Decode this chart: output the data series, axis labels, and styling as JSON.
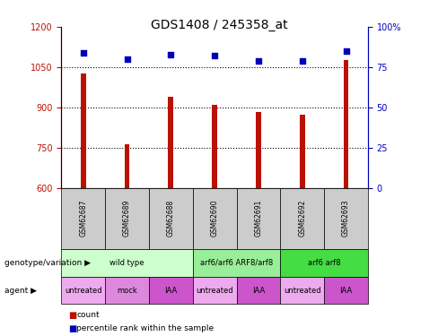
{
  "title": "GDS1408 / 245358_at",
  "samples": [
    "GSM62687",
    "GSM62689",
    "GSM62688",
    "GSM62690",
    "GSM62691",
    "GSM62692",
    "GSM62693"
  ],
  "bar_values": [
    1025,
    762,
    940,
    910,
    882,
    872,
    1075
  ],
  "percentile_values": [
    84,
    80,
    83,
    82,
    79,
    79,
    85
  ],
  "ylim_left": [
    600,
    1200
  ],
  "ylim_right": [
    0,
    100
  ],
  "yticks_left": [
    600,
    750,
    900,
    1050,
    1200
  ],
  "yticks_right": [
    0,
    25,
    50,
    75,
    100
  ],
  "bar_color": "#bb1100",
  "scatter_color": "#0000bb",
  "background_color": "#ffffff",
  "genotype_label": "genotype/variation",
  "agent_label": "agent",
  "genotype_groups": [
    {
      "label": "wild type",
      "start": 0,
      "end": 3,
      "color": "#ccffcc"
    },
    {
      "label": "arf6/arf6 ARF8/arf8",
      "start": 3,
      "end": 5,
      "color": "#99ee99"
    },
    {
      "label": "arf6 arf8",
      "start": 5,
      "end": 7,
      "color": "#44dd44"
    }
  ],
  "agent_groups": [
    {
      "label": "untreated",
      "start": 0,
      "end": 1,
      "color": "#eeaaee"
    },
    {
      "label": "mock",
      "start": 1,
      "end": 2,
      "color": "#dd88dd"
    },
    {
      "label": "IAA",
      "start": 2,
      "end": 3,
      "color": "#cc55cc"
    },
    {
      "label": "untreated",
      "start": 3,
      "end": 4,
      "color": "#eeaaee"
    },
    {
      "label": "IAA",
      "start": 4,
      "end": 5,
      "color": "#cc55cc"
    },
    {
      "label": "untreated",
      "start": 5,
      "end": 6,
      "color": "#eeaaee"
    },
    {
      "label": "IAA",
      "start": 6,
      "end": 7,
      "color": "#cc55cc"
    }
  ],
  "legend_count_color": "#bb1100",
  "legend_percentile_color": "#0000bb",
  "title_fontsize": 10,
  "tick_fontsize": 7,
  "label_fontsize": 7,
  "sample_box_color": "#cccccc",
  "bar_width": 0.12
}
